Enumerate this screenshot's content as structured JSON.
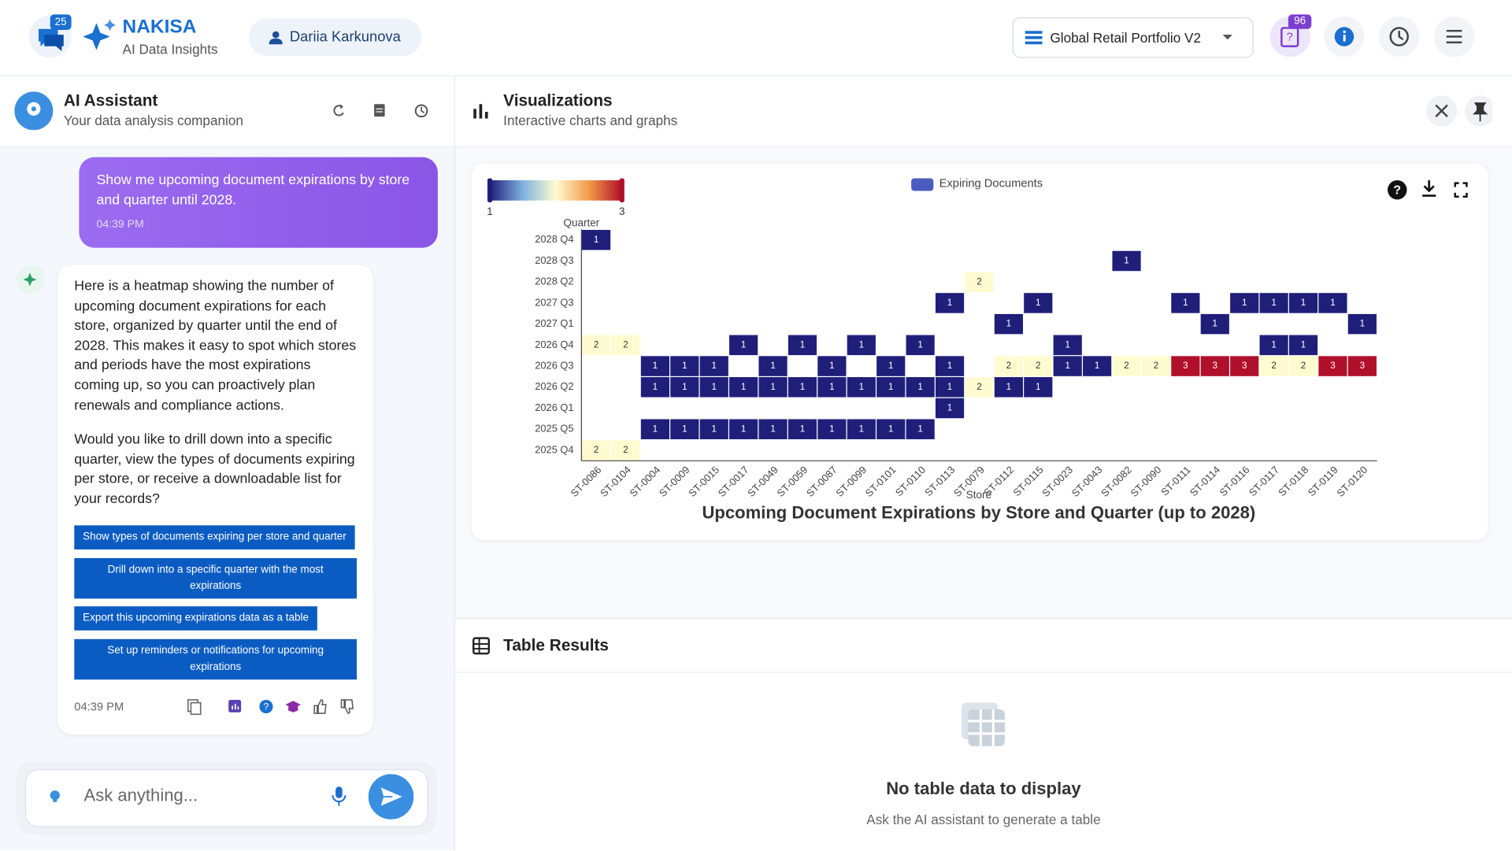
{
  "header": {
    "chat_badge": "25",
    "brand": "NAKISA",
    "tagline": "AI Data Insights",
    "user": "Dariia Karkunova",
    "dataset": "Global Retail Portfolio V2",
    "help_badge": "96"
  },
  "assistant": {
    "title": "AI Assistant",
    "subtitle": "Your data analysis companion",
    "user_message": {
      "text": "Show me upcoming document expirations by store and quarter until 2028.",
      "time": "04:39 PM"
    },
    "reply": {
      "paragraphs": [
        "Here is a heatmap showing the number of upcoming document expirations for each store, organized by quarter until the end of 2028. This makes it easy to spot which stores and periods have the most expirations coming up, so you can proactively plan renewals and compliance actions.",
        "Would you like to drill down into a specific quarter, view the types of documents expiring per store, or receive a downloadable list for your records?"
      ],
      "suggestions": [
        "Show types of documents expiring per store and quarter",
        "Drill down into a specific quarter with the most expirations",
        "Export this upcoming expirations data as a table",
        "Set up reminders or notifications for upcoming expirations"
      ],
      "time": "04:39 PM"
    },
    "input_placeholder": "Ask anything..."
  },
  "visualizations": {
    "title": "Visualizations",
    "subtitle": "Interactive charts and graphs",
    "chart_data": {
      "type": "heatmap",
      "title": "Upcoming Document Expirations by Store and Quarter (up to 2028)",
      "x_label": "Store",
      "y_label": "Quarter",
      "legend": "Expiring Documents",
      "legend_color": "#4a5cc0",
      "colorscale": [
        "#1f1f7a",
        "#7fb2de",
        "#fffbd0",
        "#f29a48",
        "#b0102a"
      ],
      "zlim": [
        1,
        3
      ],
      "zticks": [
        1,
        3
      ],
      "x": [
        "ST-0086",
        "ST-0104",
        "ST-0004",
        "ST-0009",
        "ST-0015",
        "ST-0017",
        "ST-0049",
        "ST-0059",
        "ST-0087",
        "ST-0099",
        "ST-0101",
        "ST-0110",
        "ST-0113",
        "ST-0079",
        "ST-0112",
        "ST-0115",
        "ST-0023",
        "ST-0043",
        "ST-0082",
        "ST-0090",
        "ST-0111",
        "ST-0114",
        "ST-0116",
        "ST-0117",
        "ST-0118",
        "ST-0119",
        "ST-0120"
      ],
      "y": [
        "2025 Q4",
        "2025 Q5",
        "2026 Q1",
        "2026 Q2",
        "2026 Q3",
        "2026 Q4",
        "2027 Q1",
        "2027 Q3",
        "2028 Q2",
        "2028 Q3",
        "2028 Q4"
      ],
      "z": [
        [
          2,
          2,
          null,
          null,
          null,
          null,
          null,
          null,
          null,
          null,
          null,
          null,
          null,
          null,
          null,
          null,
          null,
          null,
          null,
          null,
          null,
          null,
          null,
          null,
          null,
          null,
          null
        ],
        [
          null,
          null,
          1,
          1,
          1,
          1,
          1,
          1,
          1,
          1,
          1,
          1,
          null,
          null,
          null,
          null,
          null,
          null,
          null,
          null,
          null,
          null,
          null,
          null,
          null,
          null,
          null
        ],
        [
          null,
          null,
          null,
          null,
          null,
          null,
          null,
          null,
          null,
          null,
          null,
          null,
          1,
          null,
          null,
          null,
          null,
          null,
          null,
          null,
          null,
          null,
          null,
          null,
          null,
          null,
          null
        ],
        [
          null,
          null,
          1,
          1,
          1,
          1,
          1,
          1,
          1,
          1,
          1,
          1,
          1,
          2,
          1,
          1,
          null,
          null,
          null,
          null,
          null,
          null,
          null,
          null,
          null,
          null,
          null
        ],
        [
          null,
          null,
          1,
          1,
          1,
          null,
          1,
          null,
          1,
          null,
          1,
          null,
          1,
          null,
          2,
          2,
          1,
          1,
          2,
          2,
          3,
          3,
          3,
          2,
          2,
          3,
          3
        ],
        [
          2,
          2,
          null,
          null,
          null,
          1,
          null,
          1,
          null,
          1,
          null,
          1,
          null,
          null,
          null,
          null,
          1,
          null,
          null,
          null,
          null,
          null,
          null,
          1,
          1,
          null,
          null
        ],
        [
          null,
          null,
          null,
          null,
          null,
          null,
          null,
          null,
          null,
          null,
          null,
          null,
          null,
          null,
          1,
          null,
          null,
          null,
          null,
          null,
          null,
          1,
          null,
          null,
          null,
          null,
          1
        ],
        [
          null,
          null,
          null,
          null,
          null,
          null,
          null,
          null,
          null,
          null,
          null,
          null,
          1,
          null,
          null,
          1,
          null,
          null,
          null,
          null,
          1,
          null,
          1,
          1,
          1,
          1,
          null
        ],
        [
          null,
          null,
          null,
          null,
          null,
          null,
          null,
          null,
          null,
          null,
          null,
          null,
          null,
          2,
          null,
          null,
          null,
          null,
          null,
          null,
          null,
          null,
          null,
          null,
          null,
          null,
          null
        ],
        [
          null,
          null,
          null,
          null,
          null,
          null,
          null,
          null,
          null,
          null,
          null,
          null,
          null,
          null,
          null,
          null,
          null,
          null,
          1,
          null,
          null,
          null,
          null,
          null,
          null,
          null,
          null
        ],
        [
          1,
          null,
          null,
          null,
          null,
          null,
          null,
          null,
          null,
          null,
          null,
          null,
          null,
          null,
          null,
          null,
          null,
          null,
          null,
          null,
          null,
          null,
          null,
          null,
          null,
          null,
          null
        ]
      ]
    }
  },
  "table": {
    "title": "Table Results",
    "empty_title": "No table data to display",
    "empty_subtitle": "Ask the AI assistant to generate a table"
  }
}
